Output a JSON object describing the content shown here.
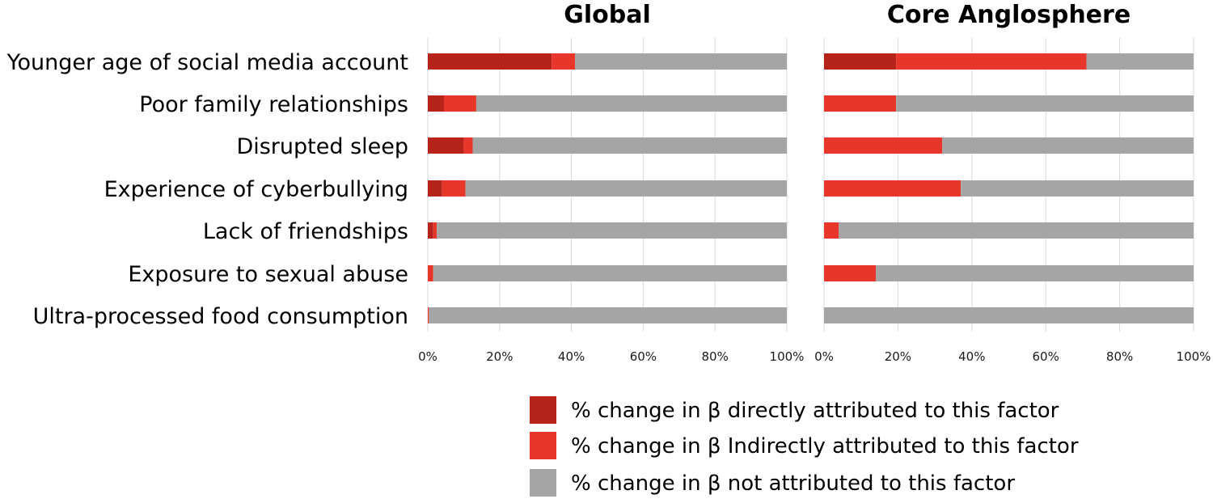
{
  "chart_data": {
    "type": "bar",
    "stacked": true,
    "orientation": "horizontal",
    "categories": [
      "Younger age of social media account",
      "Poor family relationships",
      "Disrupted sleep",
      "Experience of cyberbullying",
      "Lack of friendships",
      "Exposure to sexual abuse",
      "Ultra-processed food consumption"
    ],
    "xlim": [
      0,
      100
    ],
    "xticks": [
      "0%",
      "20%",
      "40%",
      "60%",
      "80%",
      "100%"
    ],
    "grid": true,
    "legend_position": "bottom",
    "panels": [
      {
        "title": "Global",
        "series": [
          {
            "name": "% change in β directly attributed to this factor",
            "color": "#b5231b",
            "values": [
              34.5,
              4.5,
              10,
              4,
              1.5,
              0,
              0
            ]
          },
          {
            "name": "% change in β Indirectly attributed to this factor",
            "color": "#e8362a",
            "values": [
              6.5,
              9,
              2.5,
              6.5,
              1,
              1.5,
              0.3
            ]
          },
          {
            "name": "% change in β not attributed to this factor",
            "color": "#a5a5a5",
            "values": [
              59,
              86.5,
              87.5,
              89.5,
              97.5,
              98.5,
              99.7
            ]
          }
        ]
      },
      {
        "title": "Core Anglosphere",
        "series": [
          {
            "name": "% change in β directly attributed to this factor",
            "color": "#b5231b",
            "values": [
              19.5,
              0,
              0,
              0,
              0,
              0,
              0
            ]
          },
          {
            "name": "% change in β Indirectly attributed to this factor",
            "color": "#e8362a",
            "values": [
              51.5,
              19.5,
              32,
              37,
              4,
              14,
              0
            ]
          },
          {
            "name": "% change in β not attributed to this factor",
            "color": "#a5a5a5",
            "values": [
              29,
              80.5,
              68,
              63,
              96,
              86,
              100
            ]
          }
        ]
      }
    ]
  }
}
